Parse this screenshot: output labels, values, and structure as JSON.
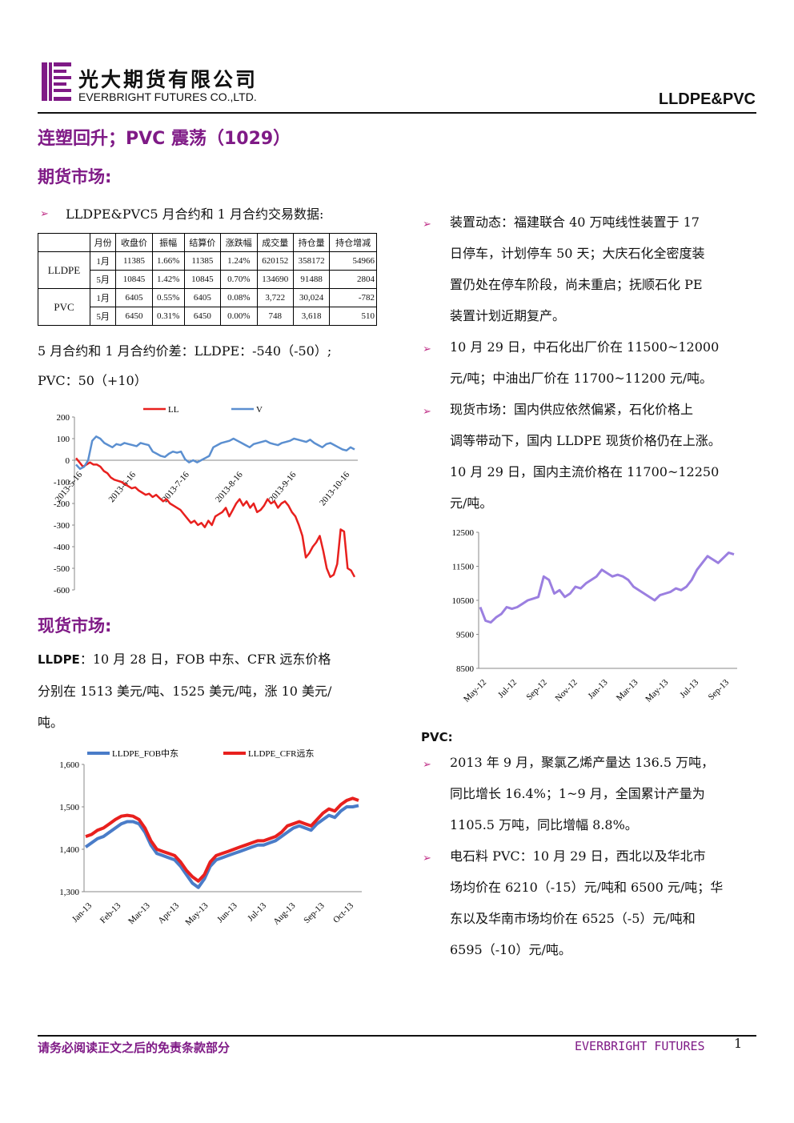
{
  "header": {
    "logo_cn": "光大期货有限公司",
    "logo_en": "EVERBRIGHT FUTURES CO.,LTD.",
    "right": "LLDPE&PVC"
  },
  "title": "连塑回升；PVC 震荡（1029）",
  "sections": {
    "futures": "期货市场:",
    "spot": "现货市场:"
  },
  "futures_intro": "LLDPE&PVC5 月合约和 1 月合约交易数据:",
  "table": {
    "headers": [
      "月份",
      "收盘价",
      "振幅",
      "结算价",
      "涨跌幅",
      "成交量",
      "持仓量",
      "持仓增减"
    ],
    "groups": [
      {
        "name": "LLDPE",
        "rows": [
          [
            "1月",
            "11385",
            "1.66%",
            "11385",
            "1.24%",
            "620152",
            "358172",
            "54966"
          ],
          [
            "5月",
            "10845",
            "1.42%",
            "10845",
            "0.70%",
            "134690",
            "91488",
            "2804"
          ]
        ]
      },
      {
        "name": "PVC",
        "rows": [
          [
            "1月",
            "6405",
            "0.55%",
            "6405",
            "0.08%",
            "3,722",
            "30,024",
            "-782"
          ],
          [
            "5月",
            "6450",
            "0.31%",
            "6450",
            "0.00%",
            "748",
            "3,618",
            "510"
          ]
        ]
      }
    ]
  },
  "spread_line1": "5 月合约和 1 月合约价差：LLDPE：-540（-50）;",
  "spread_line2": "PVC：50（+10）",
  "lldpe_spot_label": "LLDPE",
  "lldpe_spot_lines": [
    "：10 月 28 日，FOB 中东、CFR 远东价格",
    "分别在 1513 美元/吨、1525 美元/吨，涨 10 美元/",
    "吨。"
  ],
  "right_bullets": [
    {
      "lines": [
        "装置动态：福建联合 40 万吨线性装置于 17",
        "日停车，计划停车 50 天；大庆石化全密度装",
        "置仍处在停车阶段，尚未重启；抚顺石化 PE",
        "装置计划近期复产。"
      ]
    },
    {
      "lines": [
        "10 月 29 日，中石化出厂价在 11500~12000",
        "元/吨；中油出厂价在 11700~11200 元/吨。"
      ]
    },
    {
      "lines": [
        "现货市场：国内供应依然偏紧，石化价格上",
        "调等带动下，国内 LLDPE 现货价格仍在上涨。",
        "10 月 29 日，国内主流价格在 11700~12250",
        "元/吨。"
      ]
    }
  ],
  "pvc_label": "PVC:",
  "pvc_bullets": [
    {
      "lines": [
        "2013 年 9 月，聚氯乙烯产量达 136.5 万吨，",
        "同比增长 16.4%；1~9 月，全国累计产量为",
        "1105.5 万吨，同比增幅 8.8%。"
      ]
    },
    {
      "lines": [
        "电石料 PVC：10 月 29 日，西北以及华北市",
        "场均价在 6210（-15）元/吨和 6500 元/吨；华",
        "东以及华南市场均价在 6525（-5）元/吨和",
        "6595（-10）元/吨。"
      ]
    }
  ],
  "footer": {
    "disclaimer": "请务必阅读正文之后的免责条款部分",
    "brand": "EVERBRIGHT FUTURES",
    "page": "1"
  },
  "chart_data": [
    {
      "type": "line",
      "title": "",
      "series": [
        {
          "name": "LL",
          "color": "#e8201e",
          "values": [
            10,
            -10,
            -30,
            -20,
            -10,
            -20,
            -20,
            -30,
            -50,
            -60,
            -80,
            -90,
            -95,
            -100,
            -110,
            -120,
            -130,
            -125,
            -140,
            -150,
            -160,
            -155,
            -170,
            -160,
            -175,
            -190,
            -180,
            -200,
            -210,
            -220,
            -230,
            -250,
            -270,
            -290,
            -280,
            -300,
            -290,
            -310,
            -280,
            -300,
            -260,
            -250,
            -240,
            -220,
            -260,
            -230,
            -200,
            -180,
            -210,
            -190,
            -220,
            -200,
            -240,
            -230,
            -210,
            -180,
            -200,
            -190,
            -220,
            -200,
            -190,
            -210,
            -240,
            -260,
            -300,
            -350,
            -450,
            -430,
            -400,
            -380,
            -350,
            -420,
            -500,
            -540,
            -530,
            -480,
            -320,
            -330,
            -500,
            -510,
            -540
          ]
        },
        {
          "name": "V",
          "color": "#5b8fd0",
          "values": [
            -20,
            -40,
            -30,
            0,
            90,
            110,
            100,
            80,
            70,
            60,
            75,
            70,
            80,
            75,
            70,
            65,
            80,
            75,
            70,
            40,
            30,
            20,
            15,
            30,
            40,
            35,
            40,
            5,
            -10,
            0,
            -10,
            0,
            10,
            20,
            60,
            70,
            80,
            85,
            90,
            100,
            90,
            80,
            70,
            60,
            75,
            80,
            85,
            90,
            80,
            75,
            70,
            80,
            85,
            90,
            100,
            95,
            90,
            85,
            95,
            80,
            70,
            60,
            75,
            80,
            70,
            60,
            50,
            45,
            60,
            50
          ]
        }
      ],
      "y_ticks": [
        "200",
        "100",
        "0",
        "-100",
        "-200",
        "-300",
        "-400",
        "-500",
        "-600"
      ],
      "x_ticks": [
        "2013-5-16",
        "2013-6-16",
        "2013-7-16",
        "2013-8-16",
        "2013-9-16",
        "2013-10-16"
      ],
      "ylim": [
        -600,
        200
      ]
    },
    {
      "type": "line",
      "title": "",
      "series": [
        {
          "name": "",
          "color": "#9b7fe0",
          "values": [
            10300,
            9900,
            9850,
            10000,
            10100,
            10300,
            10250,
            10300,
            10400,
            10500,
            10550,
            10600,
            11200,
            11100,
            10700,
            10800,
            10600,
            10700,
            10900,
            10850,
            11000,
            11100,
            11200,
            11400,
            11300,
            11200,
            11250,
            11200,
            11100,
            10900,
            10800,
            10700,
            10600,
            10500,
            10650,
            10700,
            10750,
            10850,
            10800,
            10900,
            11100,
            11400,
            11600,
            11800,
            11700,
            11600,
            11750,
            11900,
            11850
          ]
        }
      ],
      "y_ticks": [
        "12500",
        "11500",
        "10500",
        "9500",
        "8500"
      ],
      "x_ticks": [
        "May-12",
        "Jul-12",
        "Sep-12",
        "Nov-12",
        "Jan-13",
        "Mar-13",
        "May-13",
        "Jul-13",
        "Sep-13"
      ],
      "ylim": [
        8500,
        12500
      ]
    },
    {
      "type": "line",
      "title": "",
      "series": [
        {
          "name": "LLDPE_FOB中东",
          "color": "#4a7cc8",
          "values": [
            1405,
            1415,
            1425,
            1430,
            1440,
            1450,
            1460,
            1465,
            1465,
            1460,
            1440,
            1410,
            1390,
            1385,
            1380,
            1375,
            1360,
            1340,
            1320,
            1310,
            1330,
            1360,
            1375,
            1380,
            1385,
            1390,
            1395,
            1400,
            1405,
            1410,
            1410,
            1415,
            1420,
            1430,
            1440,
            1450,
            1455,
            1450,
            1445,
            1460,
            1470,
            1480,
            1475,
            1490,
            1500,
            1500,
            1503
          ]
        },
        {
          "name": "LLDPE_CFR远东",
          "color": "#e8201e",
          "values": [
            1430,
            1435,
            1445,
            1450,
            1460,
            1470,
            1478,
            1480,
            1478,
            1470,
            1450,
            1420,
            1400,
            1395,
            1390,
            1385,
            1370,
            1350,
            1335,
            1325,
            1340,
            1370,
            1385,
            1390,
            1395,
            1400,
            1405,
            1410,
            1415,
            1420,
            1420,
            1425,
            1430,
            1440,
            1455,
            1460,
            1465,
            1460,
            1455,
            1470,
            1485,
            1495,
            1490,
            1505,
            1515,
            1520,
            1515
          ]
        }
      ],
      "y_ticks": [
        "1,600",
        "1,500",
        "1,400",
        "1,300"
      ],
      "x_ticks": [
        "Jan-13",
        "Feb-13",
        "Mar-13",
        "Apr-13",
        "May-13",
        "Jun-13",
        "Jul-13",
        "Aug-13",
        "Sep-13",
        "Oct-13"
      ],
      "ylim": [
        1300,
        1600
      ]
    }
  ]
}
